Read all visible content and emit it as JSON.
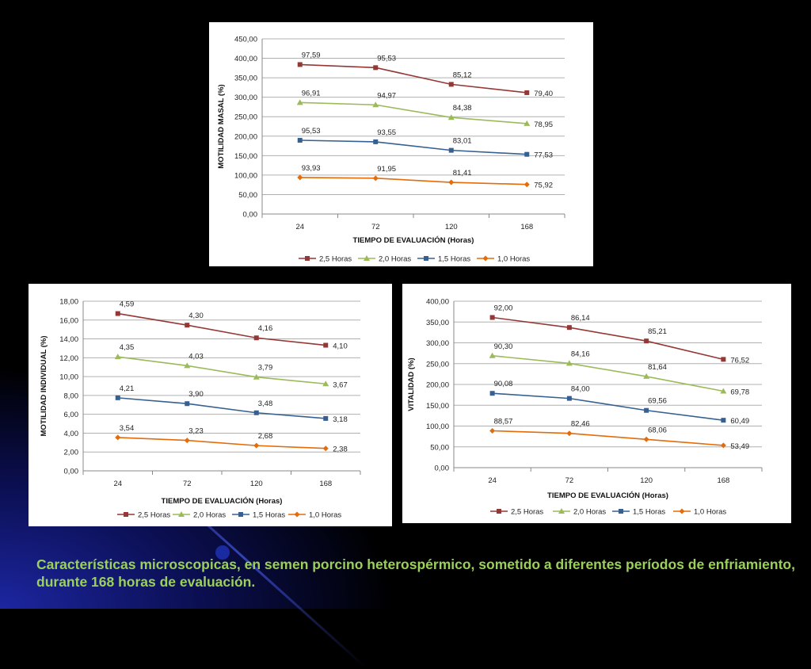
{
  "caption": "Características microscopicas, en semen porcino heterospérmico, sometido a diferentes períodos de enfriamiento, durante 168 horas de evaluación.",
  "series_colors": {
    "2,5 Horas": "#953735",
    "2,0 Horas": "#9bbb59",
    "1,5 Horas": "#366092",
    "1,0 Horas": "#e46c0a"
  },
  "chart_data": [
    {
      "type": "line",
      "id": "masal",
      "title": "",
      "xlabel": "TIEMPO DE EVALUACIÓN (Horas)",
      "ylabel": "MOTILIDAD MASAL (%)",
      "categories": [
        "24",
        "72",
        "120",
        "168"
      ],
      "ylim": [
        0,
        450
      ],
      "yticks": [
        "0,00",
        "50,00",
        "100,00",
        "150,00",
        "200,00",
        "250,00",
        "300,00",
        "350,00",
        "400,00",
        "450,00"
      ],
      "grid": true,
      "stacked": true,
      "legend_position": "bottom",
      "series": [
        {
          "name": "2,5 Horas",
          "marker": "square",
          "values": [
            97.59,
            95.53,
            85.12,
            79.4
          ],
          "labels": [
            "97,59",
            "95,53",
            "85,12",
            "79,40"
          ],
          "plot": [
            383.96,
            376.0,
            333.13,
            311.67
          ]
        },
        {
          "name": "2,0 Horas",
          "marker": "triangle",
          "values": [
            96.91,
            94.97,
            84.38,
            78.95
          ],
          "labels": [
            "96,91",
            "94,97",
            "84,38",
            "78,95"
          ],
          "plot": [
            286.37,
            280.47,
            248.01,
            232.27
          ]
        },
        {
          "name": "1,5 Horas",
          "marker": "square",
          "values": [
            95.53,
            93.55,
            83.01,
            77.53
          ],
          "labels": [
            "95,53",
            "93,55",
            "83,01",
            "77,53"
          ],
          "plot": [
            189.46,
            185.5,
            163.63,
            153.32
          ]
        },
        {
          "name": "1,0 Horas",
          "marker": "diamond",
          "values": [
            93.93,
            91.95,
            81.41,
            75.92
          ],
          "labels": [
            "93,93",
            "91,95",
            "81,41",
            "75,92"
          ],
          "plot": [
            93.93,
            91.95,
            81.41,
            75.92
          ]
        }
      ]
    },
    {
      "type": "line",
      "id": "individual",
      "title": "",
      "xlabel": "TIEMPO DE EVALUACIÓN (Horas)",
      "ylabel": "MOTILIDAD INDIVIDUAL (%)",
      "categories": [
        "24",
        "72",
        "120",
        "168"
      ],
      "ylim": [
        0,
        18
      ],
      "yticks": [
        "0,00",
        "2,00",
        "4,00",
        "6,00",
        "8,00",
        "10,00",
        "12,00",
        "14,00",
        "16,00",
        "18,00"
      ],
      "grid": true,
      "stacked": true,
      "legend_position": "bottom",
      "series": [
        {
          "name": "2,5 Horas",
          "marker": "square",
          "values": [
            4.59,
            4.3,
            4.16,
            4.1
          ],
          "labels": [
            "4,59",
            "4,30",
            "4,16",
            "4,10"
          ],
          "plot": [
            16.69,
            15.46,
            14.11,
            13.33
          ]
        },
        {
          "name": "2,0 Horas",
          "marker": "triangle",
          "values": [
            4.35,
            4.03,
            3.79,
            3.67
          ],
          "labels": [
            "4,35",
            "4,03",
            "3,79",
            "3,67"
          ],
          "plot": [
            12.1,
            11.16,
            9.95,
            9.23
          ]
        },
        {
          "name": "1,5 Horas",
          "marker": "square",
          "values": [
            4.21,
            3.9,
            3.48,
            3.18
          ],
          "labels": [
            "4,21",
            "3,90",
            "3,48",
            "3,18"
          ],
          "plot": [
            7.75,
            7.13,
            6.16,
            5.56
          ]
        },
        {
          "name": "1,0 Horas",
          "marker": "diamond",
          "values": [
            3.54,
            3.23,
            2.68,
            2.38
          ],
          "labels": [
            "3,54",
            "3,23",
            "2,68",
            "2,38"
          ],
          "plot": [
            3.54,
            3.23,
            2.68,
            2.38
          ]
        }
      ]
    },
    {
      "type": "line",
      "id": "vitalidad",
      "title": "",
      "xlabel": "TIEMPO DE EVALUACIÓN (Horas)",
      "ylabel": "VITALIDAD (%)",
      "categories": [
        "24",
        "72",
        "120",
        "168"
      ],
      "ylim": [
        0,
        400
      ],
      "yticks": [
        "0,00",
        "50,00",
        "100,00",
        "150,00",
        "200,00",
        "250,00",
        "300,00",
        "350,00",
        "400,00"
      ],
      "grid": true,
      "stacked": true,
      "legend_position": "bottom",
      "series": [
        {
          "name": "2,5 Horas",
          "marker": "square",
          "values": [
            92.0,
            86.14,
            85.21,
            76.52
          ],
          "labels": [
            "92,00",
            "86,14",
            "85,21",
            "76,52"
          ],
          "plot": [
            360.95,
            336.76,
            304.42,
            260.28
          ]
        },
        {
          "name": "2,0 Horas",
          "marker": "triangle",
          "values": [
            90.3,
            84.16,
            81.64,
            69.78
          ],
          "labels": [
            "90,30",
            "84,16",
            "81,64",
            "69,78"
          ],
          "plot": [
            268.95,
            250.62,
            219.21,
            183.76
          ]
        },
        {
          "name": "1,5 Horas",
          "marker": "square",
          "values": [
            90.08,
            84.0,
            69.56,
            60.49
          ],
          "labels": [
            "90,08",
            "84,00",
            "69,56",
            "60,49"
          ],
          "plot": [
            178.65,
            166.46,
            137.62,
            113.98
          ]
        },
        {
          "name": "1,0 Horas",
          "marker": "diamond",
          "values": [
            88.57,
            82.46,
            68.06,
            53.49
          ],
          "labels": [
            "88,57",
            "82,46",
            "68,06",
            "53,49"
          ],
          "plot": [
            88.57,
            82.46,
            68.06,
            53.49
          ]
        }
      ]
    }
  ]
}
